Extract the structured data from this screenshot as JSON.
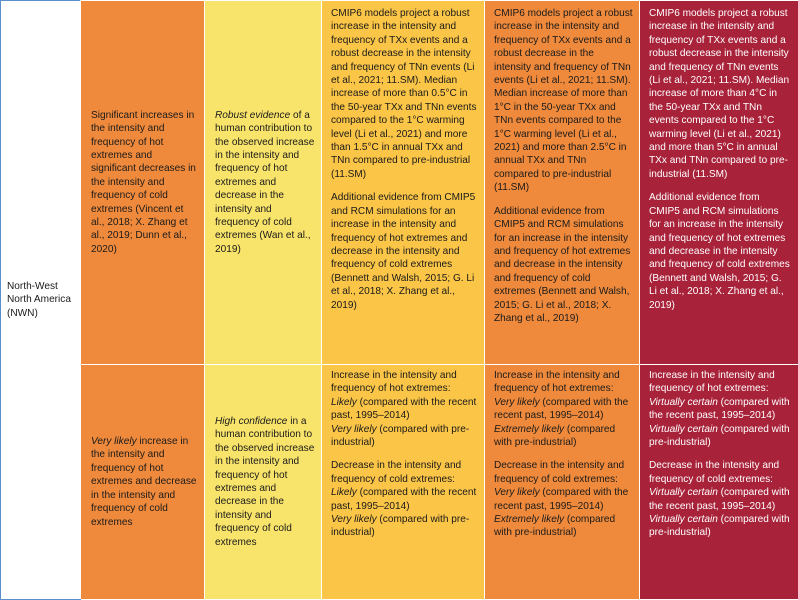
{
  "region": {
    "line1": "North-West",
    "line2": "North America",
    "line3": "(NWN)"
  },
  "row1": {
    "observed": "Significant increases in the intensity and frequency of hot extremes and significant decreases in the intensity and frequency of cold extremes (Vincent et al., 2018; X. Zhang et al., 2019; Dunn et al., 2020)",
    "attribution": {
      "emph": "Robust evidence",
      "rest": " of a human contribution to the observed increase in the intensity and frequency of hot extremes and decrease in the intensity and frequency of cold extremes (Wan et al., 2019)"
    },
    "p15": {
      "a": "CMIP6 models project a robust increase in the intensity and frequency of TXx events and a robust decrease in the intensity and frequency of TNn events (Li et al., 2021; 11.SM). Median increase of more than 0.5°C in the 50-year TXx and TNn events compared to the 1°C warming level (Li et al., 2021) and more than 1.5°C in annual TXx and TNn compared to pre-industrial (11.SM)",
      "b": "Additional evidence from CMIP5 and RCM simulations for an increase in the intensity and frequency of hot extremes and decrease in the intensity and frequency of cold extremes (Bennett and Walsh, 2015; G. Li et al., 2018; X. Zhang et al., 2019)"
    },
    "p20": {
      "a": "CMIP6 models project a robust increase in the intensity and frequency of TXx events and a robust decrease in the intensity and frequency of TNn events (Li et al., 2021; 11.SM). Median increase of more than 1°C in the 50-year TXx and TNn events compared to the 1°C warming level (Li et al., 2021) and more than 2.5°C in annual TXx and TNn compared to pre-industrial (11.SM)",
      "b": "Additional evidence from CMIP5 and RCM simulations for an increase in the intensity and frequency of hot extremes and decrease in the intensity and frequency of cold extremes (Bennett and Walsh, 2015; G. Li et al., 2018; X. Zhang et al., 2019)"
    },
    "p40": {
      "a": "CMIP6 models project a robust increase in the intensity and frequency of TXx events and a robust decrease in the intensity and frequency of TNn events (Li et al., 2021; 11.SM). Median increase of more than 4°C in the 50-year TXx and TNn events compared to the 1°C warming level (Li et al., 2021) and more than 5°C in annual TXx and TNn compared to pre-industrial (11.SM)",
      "b": "Additional evidence from CMIP5 and RCM simulations for an increase in the intensity and frequency of hot extremes and decrease in the intensity and frequency of cold extremes (Bennett and Walsh, 2015; G. Li et al., 2018; X. Zhang et al., 2019)"
    }
  },
  "row2": {
    "observed": {
      "emph": "Very likely",
      "rest": " increase in the intensity and frequency of hot extremes and decrease in the intensity and frequency of cold extremes"
    },
    "attribution": {
      "emph": "High confidence",
      "rest": " in a human contribution to the observed increase in the intensity and frequency of hot extremes and decrease in the intensity and frequency of cold extremes"
    },
    "p15": {
      "hot_intro": "Increase in the intensity and frequency of hot extremes:",
      "hot_l1": "Likely",
      "hot_l1_rest": " (compared with the recent past, 1995–2014)",
      "hot_l2": "Very likely",
      "hot_l2_rest": " (compared with pre-industrial)",
      "cold_intro": "Decrease in the intensity and frequency of cold extremes: ",
      "cold_l1": "Likely",
      "cold_l1_rest": " (compared with the recent past, 1995–2014)",
      "cold_l2": "Very likely",
      "cold_l2_rest": " (compared with pre-industrial)"
    },
    "p20": {
      "hot_intro": "Increase in the intensity and frequency of hot extremes:",
      "hot_l1": "Very likely",
      "hot_l1_rest": " (compared with the recent past, 1995–2014)",
      "hot_l2": "Extremely likely",
      "hot_l2_rest": " (compared with pre-industrial)",
      "cold_intro": "Decrease in the intensity and frequency of cold extremes: ",
      "cold_l1": "Very likely",
      "cold_l1_rest": " (compared with the recent past, 1995–2014)",
      "cold_l2": "Extremely likely",
      "cold_l2_rest": " (compared with pre-industrial)"
    },
    "p40": {
      "hot_intro": "Increase in the intensity and frequency of hot extremes:",
      "hot_l1": "Virtually certain",
      "hot_l1_rest": " (compared with the recent past, 1995–2014)",
      "hot_l2": "Virtually certain",
      "hot_l2_rest": " (compared with pre-industrial)",
      "cold_intro": "Decrease in the intensity and frequency of cold extremes: ",
      "cold_l1": "Virtually certain",
      "cold_l1_rest": " (compared with the recent past, 1995–2014)",
      "cold_l2": "Virtually certain",
      "cold_l2_rest": " (compared with pre-industrial)"
    }
  }
}
